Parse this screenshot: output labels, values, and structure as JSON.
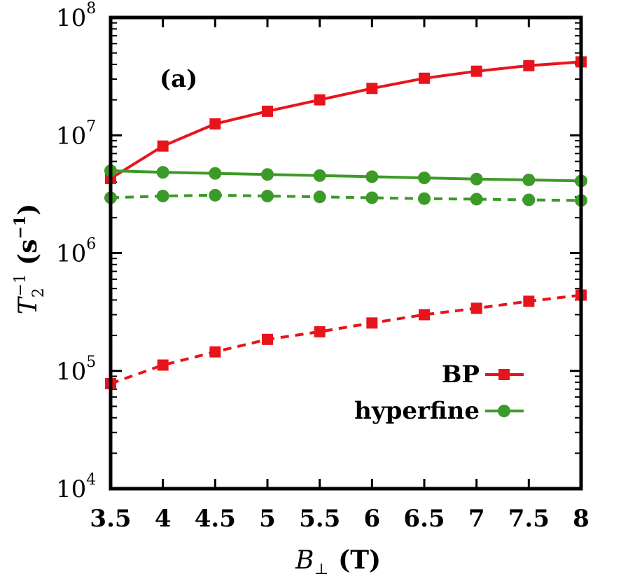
{
  "chart_data": {
    "type": "line",
    "panel_label": "(a)",
    "xlabel": {
      "symbol": "B",
      "subscript": "⊥",
      "unit": "(T)"
    },
    "ylabel": {
      "symbol": "T",
      "subscript": "2",
      "superscript": "−1",
      "unit_open": "(s",
      "unit_sup": "−1",
      "unit_close": ")"
    },
    "xlim": [
      3.5,
      8
    ],
    "ylim": [
      10000,
      100000000
    ],
    "yscale": "log",
    "xticks": [
      "3.5",
      "4",
      "4.5",
      "5",
      "5.5",
      "6",
      "6.5",
      "7",
      "7.5",
      "8"
    ],
    "xtick_values": [
      3.5,
      4,
      4.5,
      5,
      5.5,
      6,
      6.5,
      7,
      7.5,
      8
    ],
    "yticks": [
      {
        "base": "10",
        "exp": "4",
        "value": 10000
      },
      {
        "base": "10",
        "exp": "5",
        "value": 100000
      },
      {
        "base": "10",
        "exp": "6",
        "value": 1000000
      },
      {
        "base": "10",
        "exp": "7",
        "value": 10000000
      },
      {
        "base": "10",
        "exp": "8",
        "value": 100000000
      }
    ],
    "legend_position": "bottom-right",
    "series": [
      {
        "name": "BP",
        "color": "#e8141c",
        "marker": "square",
        "line": "solid",
        "x": [
          3.5,
          4,
          4.5,
          5,
          5.5,
          6,
          6.5,
          7,
          7.5,
          8
        ],
        "y": [
          4300000,
          8100000,
          12500000,
          16000000,
          20000000,
          25000000,
          30500000,
          35000000,
          39000000,
          42000000
        ]
      },
      {
        "name": "BP",
        "color": "#e8141c",
        "marker": "square",
        "line": "dashed",
        "legend": false,
        "x": [
          3.5,
          4,
          4.5,
          5,
          5.5,
          6,
          6.5,
          7,
          7.5,
          8
        ],
        "y": [
          78000,
          112000,
          145000,
          185000,
          215000,
          255000,
          300000,
          340000,
          390000,
          440000
        ]
      },
      {
        "name": "hyperfine",
        "color": "#3c9a28",
        "marker": "circle",
        "line": "solid",
        "x": [
          3.5,
          4,
          4.5,
          5,
          5.5,
          6,
          6.5,
          7,
          7.5,
          8
        ],
        "y": [
          5000000,
          4850000,
          4750000,
          4650000,
          4550000,
          4450000,
          4350000,
          4250000,
          4180000,
          4100000
        ]
      },
      {
        "name": "hyperfine",
        "color": "#3c9a28",
        "marker": "circle",
        "line": "dashed",
        "legend": false,
        "x": [
          3.5,
          4,
          4.5,
          5,
          5.5,
          6,
          6.5,
          7,
          7.5,
          8
        ],
        "y": [
          2950000,
          3050000,
          3100000,
          3050000,
          3000000,
          2950000,
          2900000,
          2870000,
          2830000,
          2800000
        ]
      }
    ]
  }
}
